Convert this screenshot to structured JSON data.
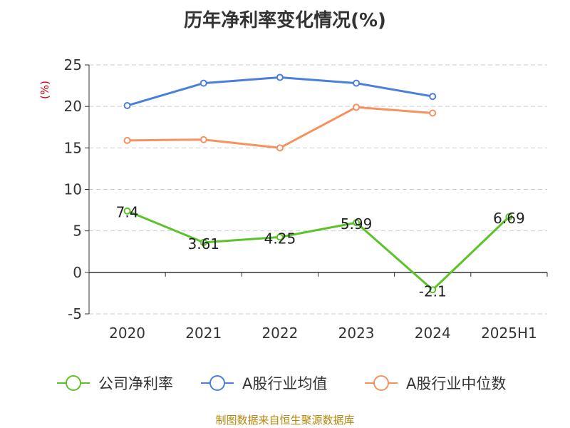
{
  "chart_data": {
    "type": "line",
    "title": "历年净利率变化情况(%)",
    "ylabel": "(%)",
    "xlabel": "",
    "categories": [
      "2020",
      "2021",
      "2022",
      "2023",
      "2024",
      "2025H1"
    ],
    "ylim": [
      -5,
      25
    ],
    "yticks": [
      -5,
      0,
      5,
      10,
      15,
      20,
      25
    ],
    "grid": true,
    "legend_position": "bottom",
    "series": [
      {
        "name": "公司净利率",
        "color": "#5cc22a",
        "values": [
          7.4,
          3.61,
          4.25,
          5.99,
          -2.1,
          6.69
        ],
        "labels": [
          "7.4",
          "3.61",
          "4.25",
          "5.99",
          "-2.1",
          "6.69"
        ]
      },
      {
        "name": "A股行业均值",
        "color": "#4a7fdc",
        "values": [
          20.1,
          22.8,
          23.5,
          22.8,
          21.2,
          null
        ]
      },
      {
        "name": "A股行业中位数",
        "color": "#f5925e",
        "values": [
          15.9,
          16.0,
          15.0,
          19.9,
          19.2,
          null
        ]
      }
    ]
  },
  "footer": {
    "source": "制图数据来自恒生聚源数据库"
  },
  "colors": {
    "ylabel": "#cc0000",
    "grid": "#cccccc",
    "axis": "#333333",
    "text": "#333333"
  }
}
